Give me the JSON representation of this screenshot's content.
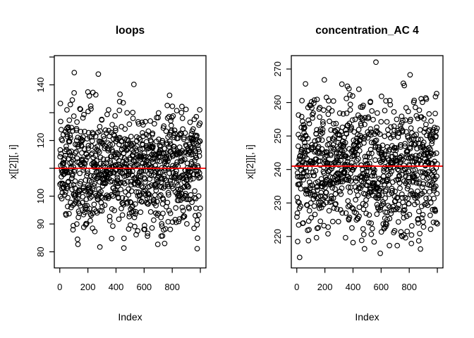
{
  "figure": {
    "background": "#FFFFFF",
    "foreground": "#000000",
    "accent_red": "#FF0000"
  },
  "chart_data": [
    {
      "type": "scatter",
      "title": "loops",
      "xlabel": "Index",
      "ylabel": "x[[2]][, i]",
      "n_points": 1000,
      "x_range": [
        1,
        1000
      ],
      "xlim": [
        -39,
        1040
      ],
      "ylim": [
        74.2,
        150.5
      ],
      "xticks": [
        {
          "value": 0,
          "label": "0"
        },
        {
          "value": 200,
          "label": "200"
        },
        {
          "value": 400,
          "label": "400"
        },
        {
          "value": 600,
          "label": "600"
        },
        {
          "value": 800,
          "label": "800"
        },
        {
          "value": 1000,
          "label": ""
        }
      ],
      "yticks": [
        {
          "value": 80,
          "label": "80"
        },
        {
          "value": 90,
          "label": "90"
        },
        {
          "value": 100,
          "label": "100"
        },
        {
          "value": 110,
          "label": ""
        },
        {
          "value": 120,
          "label": "120"
        },
        {
          "value": 130,
          "label": ""
        },
        {
          "value": 140,
          "label": "140"
        },
        {
          "value": 150,
          "label": ""
        }
      ],
      "y_distribution": {
        "shape": "normal",
        "mean": 110,
        "sd": 11,
        "min": 77.4,
        "max": 148.5
      },
      "reference_line": {
        "y": 110,
        "color": "#FF0000"
      },
      "marker": {
        "shape": "open-circle",
        "stroke": "#000000"
      },
      "seed": 101
    },
    {
      "type": "scatter",
      "title": "concentration_AC 4",
      "xlabel": "Index",
      "ylabel": "x[[2]][, i]",
      "n_points": 1000,
      "x_range": [
        1,
        1000
      ],
      "xlim": [
        -39,
        1040
      ],
      "ylim": [
        210.6,
        274.0
      ],
      "xticks": [
        {
          "value": 0,
          "label": "0"
        },
        {
          "value": 200,
          "label": "200"
        },
        {
          "value": 400,
          "label": "400"
        },
        {
          "value": 600,
          "label": "600"
        },
        {
          "value": 800,
          "label": "800"
        },
        {
          "value": 1000,
          "label": ""
        }
      ],
      "yticks": [
        {
          "value": 220,
          "label": "220"
        },
        {
          "value": 230,
          "label": "230"
        },
        {
          "value": 240,
          "label": "240"
        },
        {
          "value": 250,
          "label": "250"
        },
        {
          "value": 260,
          "label": "260"
        },
        {
          "value": 270,
          "label": "270"
        }
      ],
      "y_distribution": {
        "shape": "normal",
        "mean": 241,
        "sd": 10,
        "min": 213.0,
        "max": 272.3
      },
      "reference_line": {
        "y": 241,
        "color": "#FF0000"
      },
      "marker": {
        "shape": "open-circle",
        "stroke": "#000000"
      },
      "seed": 202
    }
  ]
}
